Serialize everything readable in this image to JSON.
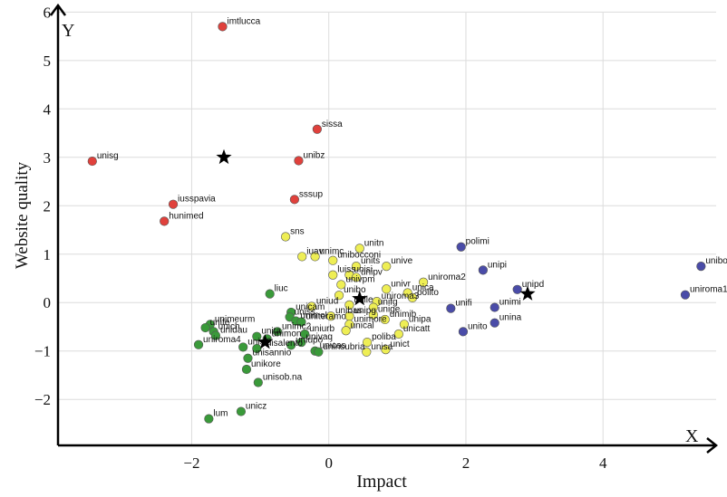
{
  "chart_data": {
    "type": "scatter",
    "xlabel": "Impact",
    "ylabel": "Website quality",
    "x_axis_name": "X",
    "y_axis_name": "Y",
    "xlim": [
      -3.95,
      5.65
    ],
    "ylim": [
      -2.95,
      6.1
    ],
    "x_ticks": [
      -2,
      0,
      2,
      4
    ],
    "y_ticks": [
      -2,
      -1,
      0,
      1,
      2,
      3,
      4,
      5,
      6
    ],
    "grid": true,
    "colors": {
      "red": "#e0413c",
      "yellow": "#eeee55",
      "green": "#3a9a3a",
      "blue": "#4a4ca8",
      "star": "#000000",
      "grid": "#dcdcdc"
    },
    "centroids": [
      {
        "x": -1.53,
        "y": 3.0
      },
      {
        "x": -0.93,
        "y": -0.82
      },
      {
        "x": 0.45,
        "y": 0.08
      },
      {
        "x": 2.9,
        "y": 0.18
      }
    ],
    "points": [
      {
        "label": "imtlucca",
        "x": -1.55,
        "y": 5.7,
        "cluster": "red"
      },
      {
        "label": "sissa",
        "x": -0.17,
        "y": 3.58,
        "cluster": "red"
      },
      {
        "label": "unisg",
        "x": -3.45,
        "y": 2.92,
        "cluster": "red"
      },
      {
        "label": "unibz",
        "x": -0.44,
        "y": 2.93,
        "cluster": "red"
      },
      {
        "label": "iusspavia",
        "x": -2.27,
        "y": 2.03,
        "cluster": "red"
      },
      {
        "label": "sssup",
        "x": -0.5,
        "y": 2.13,
        "cluster": "red"
      },
      {
        "label": "hunimed",
        "x": -2.4,
        "y": 1.68,
        "cluster": "red"
      },
      {
        "label": "sns",
        "x": -0.63,
        "y": 1.36,
        "cluster": "yellow"
      },
      {
        "label": "unitn",
        "x": 0.45,
        "y": 1.12,
        "cluster": "yellow"
      },
      {
        "label": "iuav",
        "x": -0.39,
        "y": 0.95,
        "cluster": "yellow"
      },
      {
        "label": "unimc",
        "x": -0.2,
        "y": 0.95,
        "cluster": "yellow"
      },
      {
        "label": "unibocconi",
        "x": 0.06,
        "y": 0.87,
        "cluster": "yellow"
      },
      {
        "label": "units",
        "x": 0.4,
        "y": 0.75,
        "cluster": "yellow"
      },
      {
        "label": "unive",
        "x": 0.84,
        "y": 0.75,
        "cluster": "yellow"
      },
      {
        "label": "luiss",
        "x": 0.06,
        "y": 0.57,
        "cluster": "yellow"
      },
      {
        "label": "unisi",
        "x": 0.3,
        "y": 0.57,
        "cluster": "yellow"
      },
      {
        "label": "unipv",
        "x": 0.4,
        "y": 0.52,
        "cluster": "yellow"
      },
      {
        "label": "uniroma2",
        "x": 1.38,
        "y": 0.42,
        "cluster": "yellow"
      },
      {
        "label": "univpm",
        "x": 0.18,
        "y": 0.37,
        "cluster": "yellow"
      },
      {
        "label": "univr",
        "x": 0.84,
        "y": 0.28,
        "cluster": "yellow"
      },
      {
        "label": "unica",
        "x": 1.15,
        "y": 0.2,
        "cluster": "yellow"
      },
      {
        "label": "polito",
        "x": 1.22,
        "y": 0.1,
        "cluster": "yellow"
      },
      {
        "label": "unibo",
        "x": 0.15,
        "y": 0.15,
        "cluster": "yellow"
      },
      {
        "label": "uniroma3",
        "x": 0.7,
        "y": 0.02,
        "cluster": "yellow"
      },
      {
        "label": "unile",
        "x": 0.3,
        "y": -0.05,
        "cluster": "yellow"
      },
      {
        "label": "unifg",
        "x": 0.65,
        "y": -0.1,
        "cluster": "yellow"
      },
      {
        "label": "uniud",
        "x": -0.25,
        "y": -0.08,
        "cluster": "yellow"
      },
      {
        "label": "unibas",
        "x": 0.03,
        "y": -0.28,
        "cluster": "yellow"
      },
      {
        "label": "unipg",
        "x": 0.3,
        "y": -0.28,
        "cluster": "yellow"
      },
      {
        "label": "unige",
        "x": 0.65,
        "y": -0.25,
        "cluster": "yellow"
      },
      {
        "label": "unimib",
        "x": 0.82,
        "y": -0.35,
        "cluster": "yellow"
      },
      {
        "label": "unimore",
        "x": 0.3,
        "y": -0.45,
        "cluster": "yellow"
      },
      {
        "label": "unipa",
        "x": 1.1,
        "y": -0.45,
        "cluster": "yellow"
      },
      {
        "label": "unical",
        "x": 0.25,
        "y": -0.58,
        "cluster": "yellow"
      },
      {
        "label": "unicatt",
        "x": 1.02,
        "y": -0.65,
        "cluster": "yellow"
      },
      {
        "label": "poliba",
        "x": 0.56,
        "y": -0.82,
        "cluster": "yellow"
      },
      {
        "label": "unisa",
        "x": 0.55,
        "y": -1.02,
        "cluster": "yellow"
      },
      {
        "label": "unict",
        "x": 0.83,
        "y": -0.97,
        "cluster": "yellow"
      },
      {
        "label": "liuc",
        "x": -0.86,
        "y": 0.18,
        "cluster": "green"
      },
      {
        "label": "unicam",
        "x": -0.55,
        "y": -0.2,
        "cluster": "green"
      },
      {
        "label": "uniss",
        "x": -0.57,
        "y": -0.3,
        "cluster": "green"
      },
      {
        "label": "unimol",
        "x": -0.48,
        "y": -0.38,
        "cluster": "green"
      },
      {
        "label": "uniteramo",
        "x": -0.4,
        "y": -0.4,
        "cluster": "green"
      },
      {
        "label": "unimeurm",
        "x": -1.73,
        "y": -0.45,
        "cluster": "green"
      },
      {
        "label": "unife",
        "x": -1.8,
        "y": -0.52,
        "cluster": "green"
      },
      {
        "label": "unich",
        "x": -1.68,
        "y": -0.6,
        "cluster": "green"
      },
      {
        "label": "unidau",
        "x": -1.65,
        "y": -0.68,
        "cluster": "green"
      },
      {
        "label": "uniurb",
        "x": -0.35,
        "y": -0.65,
        "cluster": "green"
      },
      {
        "label": "unita",
        "x": -1.05,
        "y": -0.7,
        "cluster": "green"
      },
      {
        "label": "unimc2",
        "x": -0.75,
        "y": -0.6,
        "cluster": "green"
      },
      {
        "label": "uniroma4",
        "x": -1.9,
        "y": -0.87,
        "cluster": "green"
      },
      {
        "label": "unimon",
        "x": -0.9,
        "y": -0.75,
        "cluster": "green"
      },
      {
        "label": "univaq",
        "x": -0.4,
        "y": -0.82,
        "cluster": "green"
      },
      {
        "label": "uniupo",
        "x": -0.55,
        "y": -0.88,
        "cluster": "green"
      },
      {
        "label": "unisi2",
        "x": -1.25,
        "y": -0.92,
        "cluster": "green"
      },
      {
        "label": "unisalento",
        "x": -1.05,
        "y": -0.95,
        "cluster": "green"
      },
      {
        "label": "unicas",
        "x": -0.2,
        "y": -1.0,
        "cluster": "green"
      },
      {
        "label": "uninsubria",
        "x": -0.15,
        "y": -1.02,
        "cluster": "green"
      },
      {
        "label": "unisannio",
        "x": -1.18,
        "y": -1.15,
        "cluster": "green"
      },
      {
        "label": "unikore",
        "x": -1.2,
        "y": -1.38,
        "cluster": "green"
      },
      {
        "label": "unisob.na",
        "x": -1.03,
        "y": -1.65,
        "cluster": "green"
      },
      {
        "label": "unicz",
        "x": -1.28,
        "y": -2.25,
        "cluster": "green"
      },
      {
        "label": "lum",
        "x": -1.75,
        "y": -2.4,
        "cluster": "green"
      },
      {
        "label": "polimi",
        "x": 1.93,
        "y": 1.15,
        "cluster": "blue"
      },
      {
        "label": "unipi",
        "x": 2.25,
        "y": 0.67,
        "cluster": "blue"
      },
      {
        "label": "unipd",
        "x": 2.75,
        "y": 0.27,
        "cluster": "blue"
      },
      {
        "label": "unibo",
        "x": 5.43,
        "y": 0.75,
        "cluster": "blue"
      },
      {
        "label": "uniroma1",
        "x": 5.2,
        "y": 0.16,
        "cluster": "blue"
      },
      {
        "label": "unifi",
        "x": 1.78,
        "y": -0.12,
        "cluster": "blue"
      },
      {
        "label": "unimi",
        "x": 2.42,
        "y": -0.1,
        "cluster": "blue"
      },
      {
        "label": "unina",
        "x": 2.42,
        "y": -0.42,
        "cluster": "blue"
      },
      {
        "label": "unito",
        "x": 1.96,
        "y": -0.6,
        "cluster": "blue"
      }
    ]
  }
}
